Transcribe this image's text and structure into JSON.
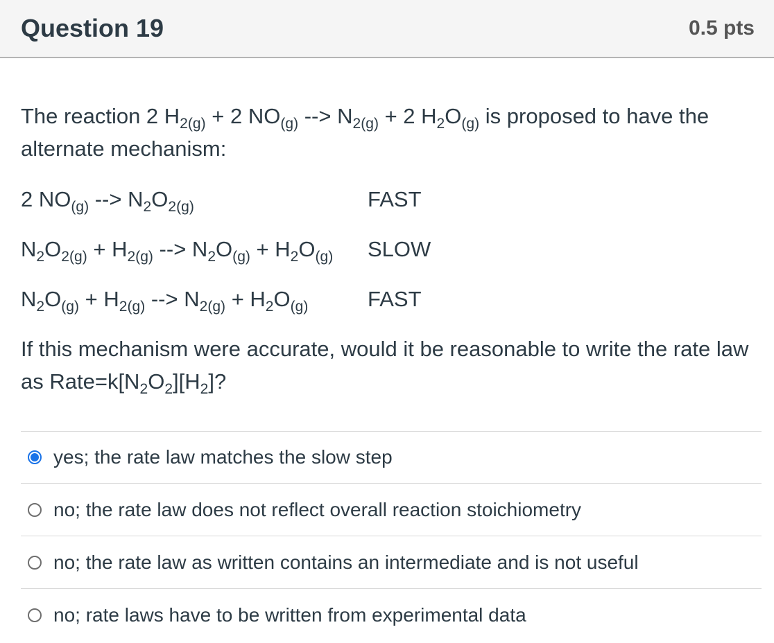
{
  "header": {
    "title": "Question 19",
    "points": "0.5 pts"
  },
  "colors": {
    "accent_blue": "#1a73e8",
    "header_background": "#f5f5f5",
    "header_border": "#b5b5b5",
    "text": "#2d3b45",
    "points_text": "#555555",
    "divider": "#d8d8d8",
    "radio_unselected_border": "#6f6f6f"
  },
  "question": {
    "intro": [
      {
        "t": "The reaction 2 H"
      },
      {
        "t": "2(g)",
        "sub": true
      },
      {
        "t": " + 2 NO"
      },
      {
        "t": "(g)",
        "sub": true
      },
      {
        "t": " --> N"
      },
      {
        "t": "2(g)",
        "sub": true
      },
      {
        "t": " + 2 H"
      },
      {
        "t": "2",
        "sub": true
      },
      {
        "t": "O"
      },
      {
        "t": "(g)",
        "sub": true
      },
      {
        "t": " is proposed to have the alternate mechanism:"
      }
    ],
    "steps": [
      {
        "formula": [
          {
            "t": "2 NO"
          },
          {
            "t": "(g)",
            "sub": true
          },
          {
            "t": " --> N"
          },
          {
            "t": "2",
            "sub": true
          },
          {
            "t": "O"
          },
          {
            "t": "2(g)",
            "sub": true
          }
        ],
        "speed": "FAST"
      },
      {
        "formula": [
          {
            "t": "N"
          },
          {
            "t": "2",
            "sub": true
          },
          {
            "t": "O"
          },
          {
            "t": "2(g)",
            "sub": true
          },
          {
            "t": " + H"
          },
          {
            "t": "2(g)",
            "sub": true
          },
          {
            "t": " --> N"
          },
          {
            "t": "2",
            "sub": true
          },
          {
            "t": "O"
          },
          {
            "t": "(g)",
            "sub": true
          },
          {
            "t": " + H"
          },
          {
            "t": "2",
            "sub": true
          },
          {
            "t": "O"
          },
          {
            "t": "(g)",
            "sub": true
          }
        ],
        "speed": "SLOW"
      },
      {
        "formula": [
          {
            "t": "N"
          },
          {
            "t": "2",
            "sub": true
          },
          {
            "t": "O"
          },
          {
            "t": "(g)",
            "sub": true
          },
          {
            "t": " + H"
          },
          {
            "t": "2(g)",
            "sub": true
          },
          {
            "t": " --> N"
          },
          {
            "t": "2(g)",
            "sub": true
          },
          {
            "t": " + H"
          },
          {
            "t": "2",
            "sub": true
          },
          {
            "t": "O"
          },
          {
            "t": "(g)",
            "sub": true
          }
        ],
        "speed": "FAST"
      }
    ],
    "closing": [
      {
        "t": "If this mechanism were accurate, would it be reasonable to write the rate law as Rate=k[N"
      },
      {
        "t": "2",
        "sub": true
      },
      {
        "t": "O"
      },
      {
        "t": "2",
        "sub": true
      },
      {
        "t": "][H"
      },
      {
        "t": "2",
        "sub": true
      },
      {
        "t": "]?"
      }
    ]
  },
  "options": [
    {
      "label": "yes; the rate law matches the slow step",
      "selected": true
    },
    {
      "label": "no; the rate law does not reflect overall reaction stoichiometry",
      "selected": false
    },
    {
      "label": "no; the rate law as written contains an intermediate and is not useful",
      "selected": false
    },
    {
      "label": "no; rate laws have to be written from experimental data",
      "selected": false
    }
  ]
}
